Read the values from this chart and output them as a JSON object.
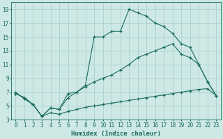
{
  "xlabel": "Humidex (Indice chaleur)",
  "xlim": [
    -0.5,
    23.5
  ],
  "ylim": [
    3,
    20
  ],
  "xticks": [
    0,
    1,
    2,
    3,
    4,
    5,
    6,
    7,
    8,
    9,
    10,
    11,
    12,
    13,
    14,
    15,
    16,
    17,
    18,
    19,
    20,
    21,
    22,
    23
  ],
  "yticks": [
    3,
    5,
    7,
    9,
    11,
    13,
    15,
    17,
    19
  ],
  "background_color": "#cde8e5",
  "grid_color": "#b0d4d0",
  "line_color": "#1a6b60",
  "line1_x": [
    0,
    1,
    2,
    3,
    4,
    5,
    6,
    7,
    8,
    9,
    10,
    11,
    12,
    13,
    14,
    15,
    16,
    17,
    18,
    19,
    20,
    21,
    22,
    23
  ],
  "line1_y": [
    7,
    6,
    5.2,
    3.5,
    4.7,
    4.5,
    6.8,
    7,
    8,
    15,
    15,
    15.8,
    15.8,
    19,
    18.5,
    18,
    17,
    16.5,
    15.5,
    14,
    13.5,
    11,
    8.5,
    6.5
  ],
  "line2_x": [
    0,
    1,
    2,
    3,
    4,
    5,
    6,
    7,
    8,
    9,
    10,
    11,
    12,
    13,
    14,
    15,
    16,
    17,
    18,
    19,
    20,
    21,
    22,
    23
  ],
  "line2_y": [
    6.8,
    6.2,
    5.2,
    3.5,
    4.7,
    4.5,
    6.2,
    7,
    7.8,
    8.5,
    9,
    9.5,
    10.2,
    11,
    12,
    12.5,
    13,
    13.5,
    14,
    12.5,
    12,
    11,
    8.5,
    6.5
  ],
  "line3_x": [
    0,
    1,
    2,
    3,
    4,
    5,
    6,
    7,
    8,
    9,
    10,
    11,
    12,
    13,
    14,
    15,
    16,
    17,
    18,
    19,
    20,
    21,
    22,
    23
  ],
  "line3_y": [
    6.8,
    6.2,
    5.2,
    3.5,
    4.0,
    3.8,
    4.2,
    4.5,
    4.8,
    5.0,
    5.2,
    5.4,
    5.6,
    5.8,
    6.0,
    6.2,
    6.4,
    6.6,
    6.8,
    7.0,
    7.2,
    7.4,
    7.5,
    6.5
  ]
}
